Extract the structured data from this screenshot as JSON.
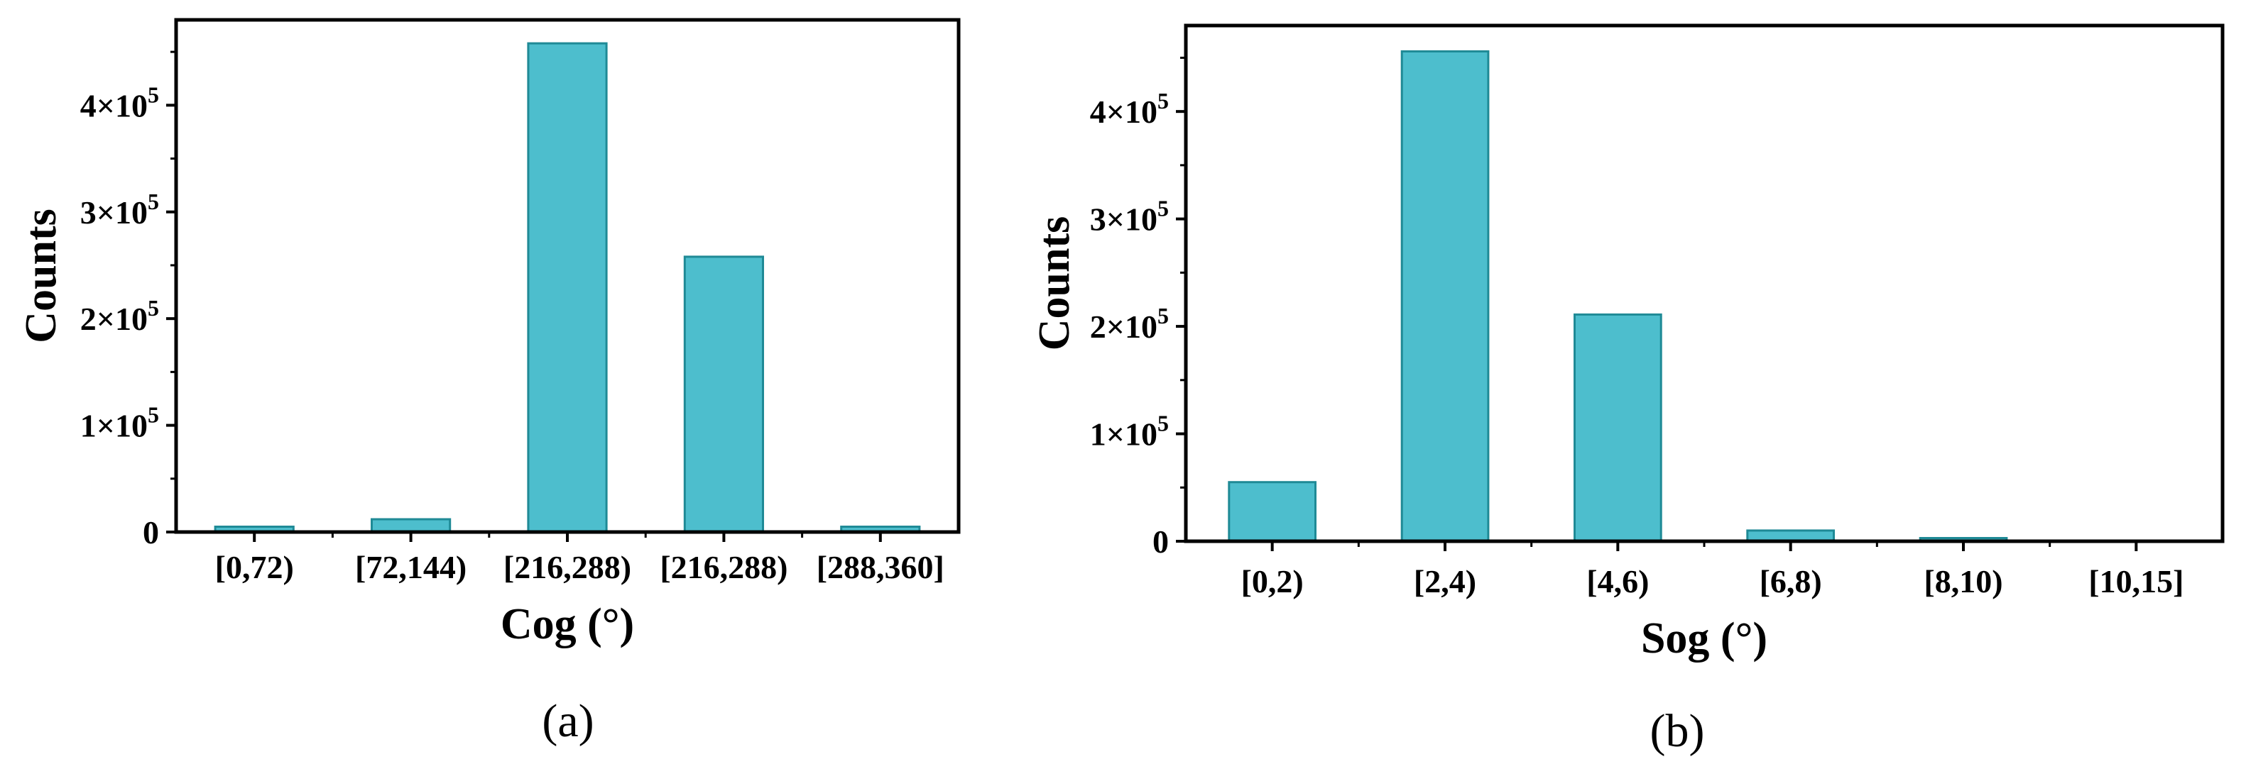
{
  "chart_data": [
    {
      "type": "bar",
      "panel_label": "(a)",
      "categories": [
        "[0,72)",
        "[72,144)",
        "[216,288)",
        "[216,288)",
        "[288,360]"
      ],
      "values": [
        5000,
        12000,
        458000,
        258000,
        5000
      ],
      "xlabel": "Cog (°)",
      "ylabel": "Counts",
      "ylim": [
        0,
        480000
      ],
      "yticks": [
        {
          "value": 0,
          "base": "0",
          "exp": ""
        },
        {
          "value": 100000,
          "base": "1×10",
          "exp": "5"
        },
        {
          "value": 200000,
          "base": "2×10",
          "exp": "5"
        },
        {
          "value": 300000,
          "base": "3×10",
          "exp": "5"
        },
        {
          "value": 400000,
          "base": "4×10",
          "exp": "5"
        }
      ],
      "bar_color": "#4dbecd",
      "bar_edge_color": "#1f8a96",
      "grid": false
    },
    {
      "type": "bar",
      "panel_label": "(b)",
      "categories": [
        "[0,2)",
        "[2,4)",
        "[4,6)",
        "[6,8)",
        "[8,10)",
        "[10,15]"
      ],
      "values": [
        55000,
        456000,
        211000,
        10000,
        3000,
        0
      ],
      "xlabel": "Sog (°)",
      "ylabel": "Counts",
      "ylim": [
        0,
        480000
      ],
      "yticks": [
        {
          "value": 0,
          "base": "0",
          "exp": ""
        },
        {
          "value": 100000,
          "base": "1×10",
          "exp": "5"
        },
        {
          "value": 200000,
          "base": "2×10",
          "exp": "5"
        },
        {
          "value": 300000,
          "base": "3×10",
          "exp": "5"
        },
        {
          "value": 400000,
          "base": "4×10",
          "exp": "5"
        }
      ],
      "bar_color": "#4dbecd",
      "bar_edge_color": "#1f8a96",
      "grid": false
    }
  ]
}
